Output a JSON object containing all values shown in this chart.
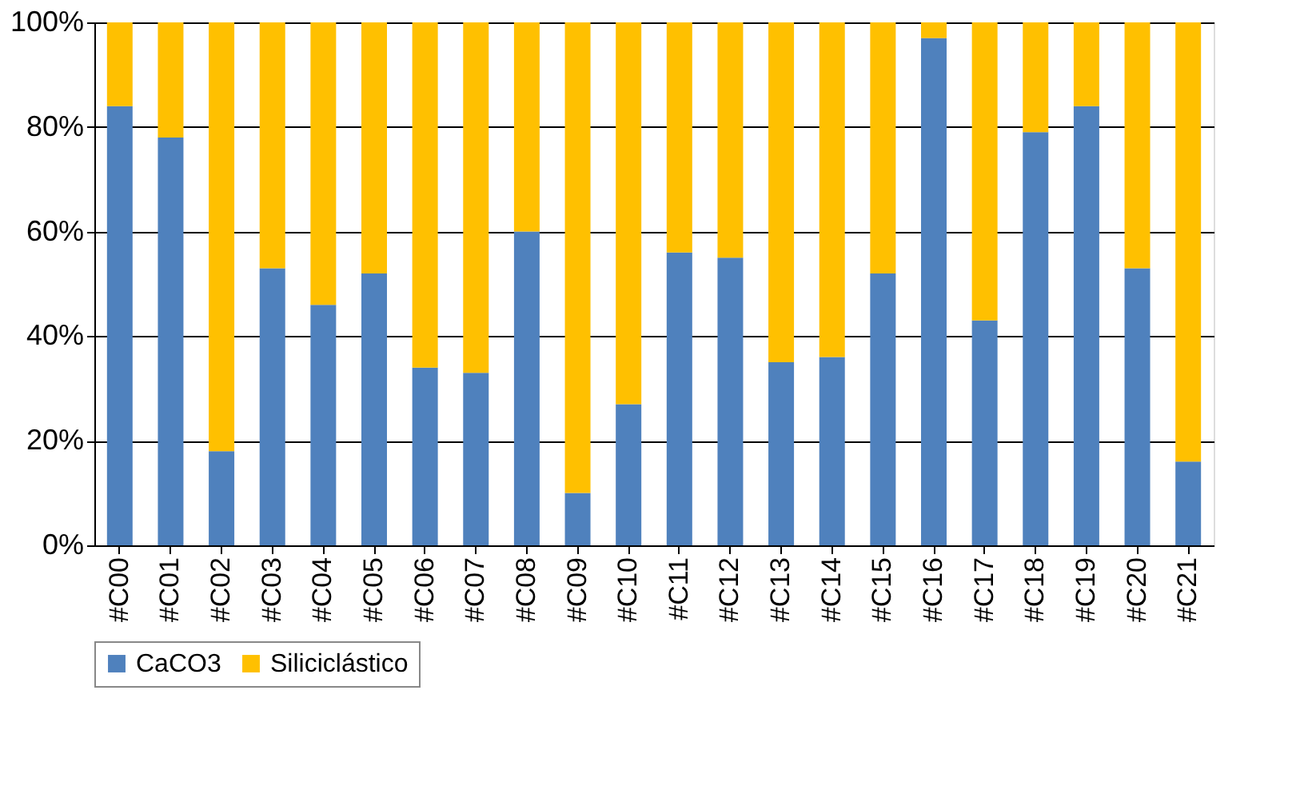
{
  "chart_data": {
    "type": "bar",
    "stacked": true,
    "categories": [
      "#C00",
      "#C01",
      "#C02",
      "#C03",
      "#C04",
      "#C05",
      "#C06",
      "#C07",
      "#C08",
      "#C09",
      "#C10",
      "#C11",
      "#C12",
      "#C13",
      "#C14",
      "#C15",
      "#C16",
      "#C17",
      "#C18",
      "#C19",
      "#C20",
      "#C21"
    ],
    "series": [
      {
        "name": "CaCO3",
        "color": "#4f81bd",
        "values": [
          84,
          78,
          18,
          53,
          46,
          52,
          34,
          33,
          60,
          10,
          27,
          56,
          55,
          35,
          36,
          52,
          97,
          43,
          79,
          84,
          53,
          16
        ]
      },
      {
        "name": "Siliciclástico",
        "color": "#ffc000",
        "values": [
          16,
          22,
          82,
          47,
          54,
          48,
          66,
          67,
          40,
          90,
          73,
          44,
          45,
          65,
          64,
          48,
          3,
          57,
          21,
          16,
          47,
          84
        ]
      }
    ],
    "ylim": [
      0,
      100
    ],
    "yticks": [
      {
        "value": 0,
        "label": "0%"
      },
      {
        "value": 20,
        "label": "20%"
      },
      {
        "value": 40,
        "label": "40%"
      },
      {
        "value": 60,
        "label": "60%"
      },
      {
        "value": 80,
        "label": "80%"
      },
      {
        "value": 100,
        "label": "100%"
      }
    ],
    "grid": "y",
    "legend": "bottom"
  }
}
